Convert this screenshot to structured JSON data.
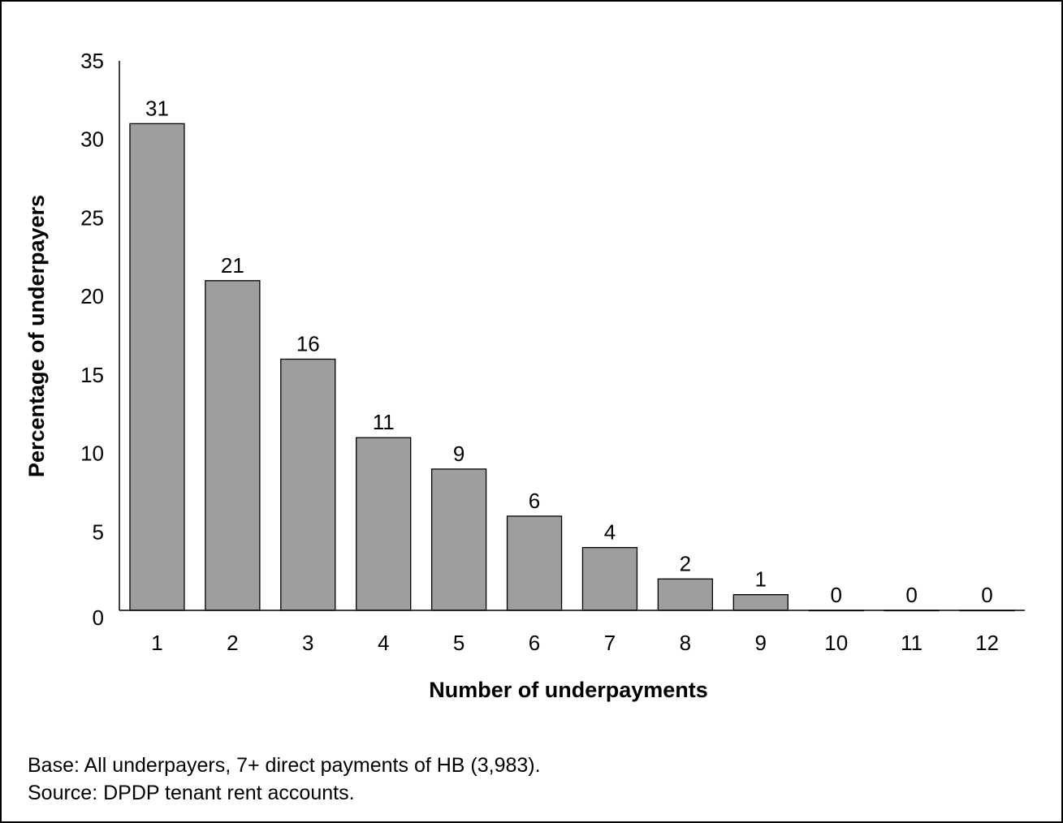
{
  "colors": {
    "bar_fill": "#9d9e a0",
    "bar_stroke": "#000000",
    "axis": "#000000"
  },
  "chart_data": {
    "type": "bar",
    "title": "",
    "xlabel": "Number of underpayments",
    "ylabel": "Percentage of underpayers",
    "categories": [
      "1",
      "2",
      "3",
      "4",
      "5",
      "6",
      "7",
      "8",
      "9",
      "10",
      "11",
      "12"
    ],
    "values": [
      31,
      21,
      16,
      11,
      9,
      6,
      4,
      2,
      1,
      0,
      0,
      0
    ],
    "data_labels": [
      "31",
      "21",
      "16",
      "11",
      "9",
      "6",
      "4",
      "2",
      "1",
      "0",
      "0",
      "0"
    ],
    "ylim": [
      0,
      35
    ],
    "yticks": [
      0,
      5,
      10,
      15,
      20,
      25,
      30,
      35
    ],
    "grid": false,
    "legend": "none"
  },
  "notes": {
    "base": "Base: All underpayers, 7+ direct payments of HB (3,983).",
    "source": "Source: DPDP tenant rent accounts."
  }
}
